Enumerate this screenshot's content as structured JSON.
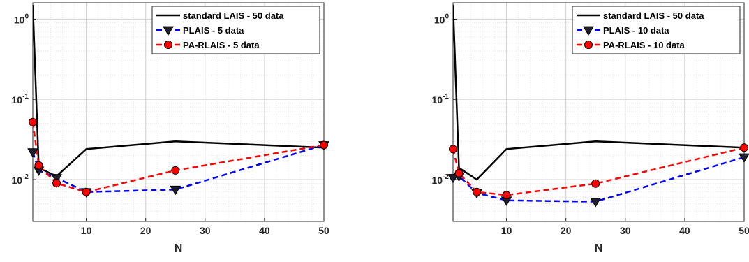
{
  "chart_data": [
    {
      "type": "line",
      "xlabel": "N",
      "ylabel": "",
      "title": "",
      "xlim": [
        1,
        50
      ],
      "ylim": [
        0.003,
        1.6
      ],
      "y_scale": "log",
      "grid": true,
      "legend_position": "top-right",
      "x_ticks": [
        10,
        20,
        30,
        40,
        50
      ],
      "x_tick_labels": [
        "10",
        "20",
        "30",
        "40",
        "50"
      ],
      "y_ticks": [
        0.01,
        0.1,
        1
      ],
      "y_tick_labels": [
        {
          "base": "10",
          "exp": "-2"
        },
        {
          "base": "10",
          "exp": "-1"
        },
        {
          "base": "10",
          "exp": "0"
        }
      ],
      "series": [
        {
          "name": "standard LAIS - 50 data",
          "color": "#000000",
          "style": "solid",
          "marker": "none",
          "x": [
            1,
            2,
            5,
            10,
            25,
            50
          ],
          "y": [
            1.5,
            0.014,
            0.011,
            0.024,
            0.03,
            0.025
          ]
        },
        {
          "name": "PLAIS - 5 data",
          "color": "#0000ff",
          "style": "dashed",
          "marker": "triangle-down",
          "x": [
            1,
            2,
            5,
            10,
            25,
            50
          ],
          "y": [
            0.022,
            0.013,
            0.0105,
            0.007,
            0.0075,
            0.027
          ]
        },
        {
          "name": "PA-RLAIS - 5 data",
          "color": "#ff0000",
          "style": "dashed",
          "marker": "circle",
          "x": [
            1,
            2,
            5,
            10,
            25,
            50
          ],
          "y": [
            0.052,
            0.015,
            0.009,
            0.007,
            0.013,
            0.027
          ]
        }
      ]
    },
    {
      "type": "line",
      "xlabel": "N",
      "ylabel": "",
      "title": "",
      "xlim": [
        1,
        50
      ],
      "ylim": [
        0.003,
        1.6
      ],
      "y_scale": "log",
      "grid": true,
      "legend_position": "top-right",
      "x_ticks": [
        10,
        20,
        30,
        40,
        50
      ],
      "x_tick_labels": [
        "10",
        "20",
        "30",
        "40",
        "50"
      ],
      "y_ticks": [
        0.01,
        0.1,
        1
      ],
      "y_tick_labels": [
        {
          "base": "10",
          "exp": "-2"
        },
        {
          "base": "10",
          "exp": "-1"
        },
        {
          "base": "10",
          "exp": "0"
        }
      ],
      "series": [
        {
          "name": "standard LAIS - 50 data",
          "color": "#000000",
          "style": "solid",
          "marker": "none",
          "x": [
            1,
            2,
            5,
            10,
            25,
            50
          ],
          "y": [
            1.5,
            0.014,
            0.01,
            0.024,
            0.03,
            0.025
          ]
        },
        {
          "name": "PLAIS - 10 data",
          "color": "#0000ff",
          "style": "dashed",
          "marker": "triangle-down",
          "x": [
            1,
            2,
            5,
            10,
            25,
            50
          ],
          "y": [
            0.0105,
            0.011,
            0.0068,
            0.0055,
            0.0053,
            0.019
          ]
        },
        {
          "name": "PA-RLAIS - 10 data",
          "color": "#ff0000",
          "style": "dashed",
          "marker": "circle",
          "x": [
            1,
            2,
            5,
            10,
            25,
            50
          ],
          "y": [
            0.024,
            0.012,
            0.007,
            0.0064,
            0.0089,
            0.025
          ]
        }
      ]
    }
  ]
}
